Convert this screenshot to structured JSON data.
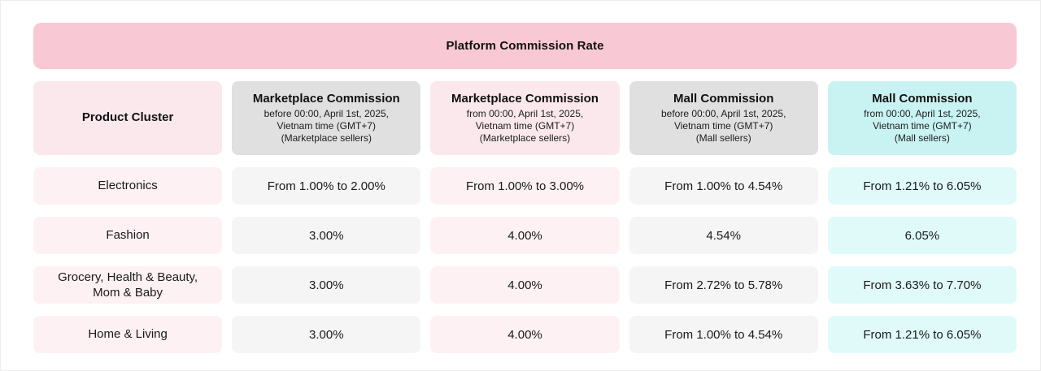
{
  "title": "Platform Commission Rate",
  "colors": {
    "banner_bg": "#f8c9d4",
    "header_pink": "#fbe8ec",
    "header_gray": "#e0e0e0",
    "header_cyan": "#c9f3f3",
    "cell_pink": "#fdf1f3",
    "cell_gray": "#f5f5f5",
    "cell_cyan": "#e0fafa"
  },
  "table": {
    "columns": [
      {
        "title": "Product Cluster",
        "subtitle_lines": []
      },
      {
        "title": "Marketplace Commission",
        "subtitle_lines": [
          "before 00:00, April 1st, 2025,",
          "Vietnam time (GMT+7)",
          "(Marketplace sellers)"
        ]
      },
      {
        "title": "Marketplace Commission",
        "subtitle_lines": [
          "from 00:00, April 1st, 2025,",
          "Vietnam time (GMT+7)",
          "(Marketplace sellers)"
        ]
      },
      {
        "title": "Mall Commission",
        "subtitle_lines": [
          "before 00:00, April 1st, 2025,",
          "Vietnam time (GMT+7)",
          "(Mall sellers)"
        ]
      },
      {
        "title": "Mall Commission",
        "subtitle_lines": [
          "from 00:00, April 1st, 2025,",
          "Vietnam time (GMT+7)",
          "(Mall sellers)"
        ]
      }
    ],
    "rows": [
      {
        "cluster": "Electronics",
        "values": [
          "From 1.00% to 2.00%",
          "From 1.00% to 3.00%",
          "From 1.00% to 4.54%",
          "From 1.21% to 6.05%"
        ]
      },
      {
        "cluster": "Fashion",
        "values": [
          "3.00%",
          "4.00%",
          "4.54%",
          "6.05%"
        ]
      },
      {
        "cluster": "Grocery, Health & Beauty, Mom & Baby",
        "values": [
          "3.00%",
          "4.00%",
          "From 2.72% to 5.78%",
          "From 3.63% to 7.70%"
        ]
      },
      {
        "cluster": "Home & Living",
        "values": [
          "3.00%",
          "4.00%",
          "From 1.00% to 4.54%",
          "From 1.21% to 6.05%"
        ]
      }
    ]
  },
  "chart_data": {
    "type": "table",
    "title": "Platform Commission Rate",
    "columns": [
      "Product Cluster",
      "Marketplace Commission before 00:00, April 1st, 2025, Vietnam time (GMT+7) (Marketplace sellers)",
      "Marketplace Commission from 00:00, April 1st, 2025, Vietnam time (GMT+7) (Marketplace sellers)",
      "Mall Commission before 00:00, April 1st, 2025, Vietnam time (GMT+7) (Mall sellers)",
      "Mall Commission from 00:00, April 1st, 2025, Vietnam time (GMT+7) (Mall sellers)"
    ],
    "rows": [
      [
        "Electronics",
        "From 1.00% to 2.00%",
        "From 1.00% to 3.00%",
        "From 1.00% to 4.54%",
        "From 1.21% to 6.05%"
      ],
      [
        "Fashion",
        "3.00%",
        "4.00%",
        "4.54%",
        "6.05%"
      ],
      [
        "Grocery, Health & Beauty, Mom & Baby",
        "3.00%",
        "4.00%",
        "From 2.72% to 5.78%",
        "From 3.63% to 7.70%"
      ],
      [
        "Home & Living",
        "3.00%",
        "4.00%",
        "From 1.00% to 4.54%",
        "From 1.21% to 6.05%"
      ]
    ]
  }
}
